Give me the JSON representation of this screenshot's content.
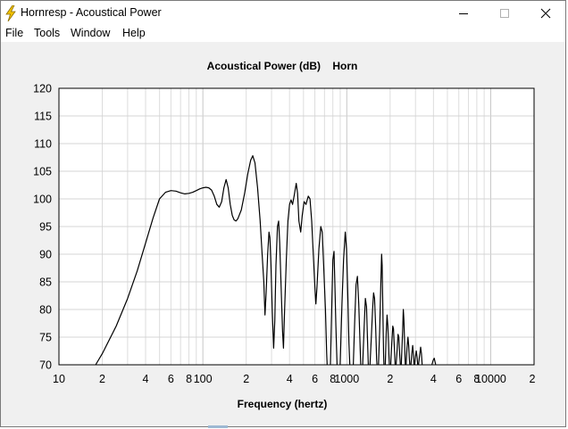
{
  "window": {
    "title": "Hornresp - Acoustical Power",
    "icon": "lightning-bolt-icon",
    "controls": [
      "minimize-icon",
      "maximize-icon",
      "close-icon"
    ]
  },
  "menu": {
    "items": [
      "File",
      "Tools",
      "Window",
      "Help"
    ]
  },
  "chart_data": {
    "type": "line",
    "title": "Acoustical Power (dB)    Horn",
    "xlabel": "Frequency (hertz)",
    "ylabel": "",
    "x_scale": "log",
    "xlim": [
      10,
      20000
    ],
    "ylim": [
      70,
      120
    ],
    "grid": true,
    "y_ticks": [
      "120",
      "115",
      "110",
      "105",
      "100",
      "95",
      "90",
      "85",
      "80",
      "75",
      "70"
    ],
    "x_tick_labels": [
      {
        "x": 10,
        "label": "10"
      },
      {
        "x": 20,
        "label": "2"
      },
      {
        "x": 40,
        "label": "4"
      },
      {
        "x": 60,
        "label": "6"
      },
      {
        "x": 80,
        "label": "8"
      },
      {
        "x": 100,
        "label": "100"
      },
      {
        "x": 200,
        "label": "2"
      },
      {
        "x": 400,
        "label": "4"
      },
      {
        "x": 600,
        "label": "6"
      },
      {
        "x": 800,
        "label": "8"
      },
      {
        "x": 1000,
        "label": "1000"
      },
      {
        "x": 2000,
        "label": "2"
      },
      {
        "x": 4000,
        "label": "4"
      },
      {
        "x": 6000,
        "label": "6"
      },
      {
        "x": 8000,
        "label": "8"
      },
      {
        "x": 10000,
        "label": "10000"
      },
      {
        "x": 20000,
        "label": "2"
      }
    ],
    "series": [
      {
        "color": "#000000",
        "points": [
          [
            18,
            70
          ],
          [
            20,
            72
          ],
          [
            25,
            77
          ],
          [
            30,
            82
          ],
          [
            35,
            87
          ],
          [
            40,
            92
          ],
          [
            45,
            96.5
          ],
          [
            50,
            100
          ],
          [
            55,
            101.2
          ],
          [
            60,
            101.5
          ],
          [
            65,
            101.4
          ],
          [
            70,
            101.1
          ],
          [
            75,
            100.9
          ],
          [
            80,
            101
          ],
          [
            85,
            101.2
          ],
          [
            90,
            101.5
          ],
          [
            95,
            101.8
          ],
          [
            100,
            102
          ],
          [
            105,
            102.1
          ],
          [
            110,
            102
          ],
          [
            115,
            101.6
          ],
          [
            120,
            100.5
          ],
          [
            125,
            99
          ],
          [
            130,
            98.5
          ],
          [
            135,
            99.5
          ],
          [
            140,
            102
          ],
          [
            145,
            103.5
          ],
          [
            150,
            102
          ],
          [
            155,
            99
          ],
          [
            160,
            97
          ],
          [
            165,
            96.2
          ],
          [
            170,
            96
          ],
          [
            175,
            96.4
          ],
          [
            185,
            98
          ],
          [
            195,
            101
          ],
          [
            205,
            104.5
          ],
          [
            215,
            107
          ],
          [
            222,
            107.8
          ],
          [
            230,
            106.5
          ],
          [
            240,
            102
          ],
          [
            250,
            96
          ],
          [
            258,
            90
          ],
          [
            265,
            85
          ],
          [
            270,
            79
          ],
          [
            275,
            83
          ],
          [
            282,
            90
          ],
          [
            288,
            94
          ],
          [
            292,
            93
          ],
          [
            297,
            88
          ],
          [
            303,
            80
          ],
          [
            310,
            73
          ],
          [
            316,
            78
          ],
          [
            322,
            88
          ],
          [
            330,
            95
          ],
          [
            336,
            96
          ],
          [
            342,
            92
          ],
          [
            350,
            84
          ],
          [
            358,
            76
          ],
          [
            363,
            73
          ],
          [
            370,
            80
          ],
          [
            380,
            89
          ],
          [
            390,
            96
          ],
          [
            400,
            99
          ],
          [
            410,
            99.8
          ],
          [
            420,
            99
          ],
          [
            430,
            100.5
          ],
          [
            445,
            102.8
          ],
          [
            455,
            101
          ],
          [
            465,
            96
          ],
          [
            478,
            94
          ],
          [
            490,
            97
          ],
          [
            505,
            99.5
          ],
          [
            520,
            99
          ],
          [
            540,
            100.5
          ],
          [
            555,
            100
          ],
          [
            570,
            96
          ],
          [
            585,
            90
          ],
          [
            600,
            84
          ],
          [
            610,
            81
          ],
          [
            620,
            84
          ],
          [
            640,
            91
          ],
          [
            660,
            95
          ],
          [
            675,
            94
          ],
          [
            690,
            88
          ],
          [
            710,
            80
          ],
          [
            725,
            72
          ],
          [
            730,
            70
          ]
        ]
      },
      {
        "color": "#000000",
        "points": [
          [
            770,
            70
          ],
          [
            785,
            80
          ],
          [
            800,
            89
          ],
          [
            815,
            90.5
          ],
          [
            825,
            85
          ],
          [
            840,
            77
          ],
          [
            855,
            70
          ]
        ]
      },
      {
        "color": "#000000",
        "points": [
          [
            900,
            70
          ],
          [
            925,
            81
          ],
          [
            950,
            89
          ],
          [
            975,
            94
          ],
          [
            995,
            91
          ],
          [
            1015,
            83
          ],
          [
            1035,
            74
          ],
          [
            1050,
            70
          ]
        ]
      },
      {
        "color": "#000000",
        "points": [
          [
            1110,
            70
          ],
          [
            1135,
            78
          ],
          [
            1160,
            84.5
          ],
          [
            1185,
            86
          ],
          [
            1210,
            81
          ],
          [
            1235,
            74
          ],
          [
            1250,
            70
          ]
        ]
      },
      {
        "color": "#000000",
        "points": [
          [
            1290,
            70
          ],
          [
            1320,
            77
          ],
          [
            1345,
            82
          ],
          [
            1370,
            80.5
          ],
          [
            1395,
            74
          ],
          [
            1410,
            70
          ]
        ]
      },
      {
        "color": "#000000",
        "points": [
          [
            1450,
            70
          ],
          [
            1480,
            75
          ],
          [
            1510,
            80
          ],
          [
            1535,
            83
          ],
          [
            1560,
            82
          ],
          [
            1585,
            77
          ],
          [
            1610,
            71
          ],
          [
            1620,
            70
          ]
        ]
      },
      {
        "color": "#000000",
        "points": [
          [
            1660,
            70
          ],
          [
            1690,
            76
          ],
          [
            1720,
            84
          ],
          [
            1745,
            90
          ],
          [
            1760,
            88
          ],
          [
            1780,
            80
          ],
          [
            1800,
            72
          ],
          [
            1810,
            70
          ]
        ]
      },
      {
        "color": "#000000",
        "points": [
          [
            1850,
            70
          ],
          [
            1880,
            76
          ],
          [
            1905,
            79
          ],
          [
            1930,
            77
          ],
          [
            1960,
            72
          ],
          [
            1975,
            70
          ]
        ]
      },
      {
        "color": "#000000",
        "points": [
          [
            2020,
            70
          ],
          [
            2055,
            74
          ],
          [
            2085,
            77
          ],
          [
            2110,
            76.5
          ],
          [
            2140,
            73
          ],
          [
            2165,
            70
          ]
        ]
      },
      {
        "color": "#000000",
        "points": [
          [
            2200,
            70
          ],
          [
            2240,
            73
          ],
          [
            2270,
            75.5
          ],
          [
            2300,
            75
          ],
          [
            2330,
            72
          ],
          [
            2355,
            70
          ]
        ]
      },
      {
        "color": "#000000",
        "points": [
          [
            2390,
            70
          ],
          [
            2440,
            76
          ],
          [
            2470,
            80
          ],
          [
            2495,
            78
          ],
          [
            2525,
            73
          ],
          [
            2550,
            70
          ]
        ]
      },
      {
        "color": "#000000",
        "points": [
          [
            2580,
            70
          ],
          [
            2620,
            73
          ],
          [
            2660,
            75
          ],
          [
            2690,
            73.5
          ],
          [
            2720,
            71
          ],
          [
            2740,
            70
          ]
        ]
      },
      {
        "color": "#000000",
        "points": [
          [
            2790,
            70
          ],
          [
            2830,
            72
          ],
          [
            2870,
            73.5
          ],
          [
            2900,
            72.2
          ],
          [
            2930,
            70
          ]
        ]
      },
      {
        "color": "#000000",
        "points": [
          [
            2960,
            70
          ],
          [
            3000,
            71.5
          ],
          [
            3040,
            72.5
          ],
          [
            3080,
            71.3
          ],
          [
            3110,
            70
          ]
        ]
      },
      {
        "color": "#000000",
        "points": [
          [
            3150,
            70
          ],
          [
            3200,
            71.5
          ],
          [
            3260,
            73.2
          ],
          [
            3300,
            72
          ],
          [
            3340,
            70
          ]
        ]
      },
      {
        "color": "#000000",
        "points": [
          [
            3900,
            70
          ],
          [
            3980,
            70.8
          ],
          [
            4050,
            71.2
          ],
          [
            4110,
            70.4
          ],
          [
            4150,
            70
          ]
        ]
      }
    ]
  }
}
